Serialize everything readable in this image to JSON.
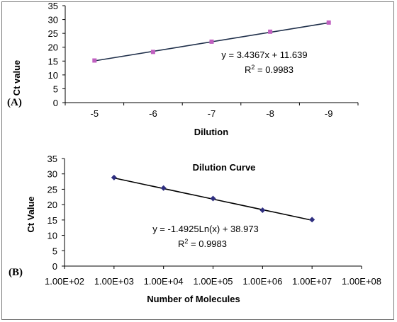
{
  "chart_data": [
    {
      "type": "scatter",
      "panel_label": "(A)",
      "title": "",
      "xlabel": "Dilution",
      "ylabel": "Ct value",
      "categories": [
        "-5",
        "-6",
        "-7",
        "-8",
        "-9"
      ],
      "series": [
        {
          "name": "",
          "values": [
            15.2,
            18.3,
            22.0,
            25.6,
            28.9
          ],
          "color": "#c060c0",
          "marker": "square"
        }
      ],
      "trendline": {
        "slope": 3.4367,
        "intercept": 11.639,
        "color": "#1f2f4a"
      },
      "equation": "y = 3.4367x + 11.639",
      "r2_prefix": "R",
      "r2_sup": "2",
      "r2_value": " = 0.9983",
      "yticks": [
        "0",
        "5",
        "10",
        "15",
        "20",
        "25",
        "30",
        "35"
      ],
      "ylim": [
        0,
        35
      ],
      "grid": false
    },
    {
      "type": "scatter",
      "panel_label": "(B)",
      "title": "Dilution Curve",
      "xlabel": "Number of Molecules",
      "ylabel": "Ct Value",
      "xscale": "log",
      "x": [
        1000,
        10000,
        100000,
        1000000,
        10000000
      ],
      "series": [
        {
          "name": "",
          "values": [
            28.8,
            25.4,
            22.0,
            18.2,
            15.1
          ],
          "color": "#2f2f80",
          "marker": "diamond"
        }
      ],
      "trendline": {
        "type": "log",
        "a": -1.4925,
        "b": 38.973,
        "color": "#000000"
      },
      "equation": "y = -1.4925Ln(x) + 38.973",
      "r2_prefix": "R",
      "r2_sup": "2",
      "r2_value": " = 0.9983",
      "xticks": [
        "1.00E+02",
        "1.00E+03",
        "1.00E+04",
        "1.00E+05",
        "1.00E+06",
        "1.00E+07",
        "1.00E+08"
      ],
      "xlim": [
        100,
        100000000
      ],
      "yticks": [
        "0",
        "5",
        "10",
        "15",
        "20",
        "25",
        "30",
        "35"
      ],
      "ylim": [
        0,
        35
      ],
      "grid": false
    }
  ]
}
